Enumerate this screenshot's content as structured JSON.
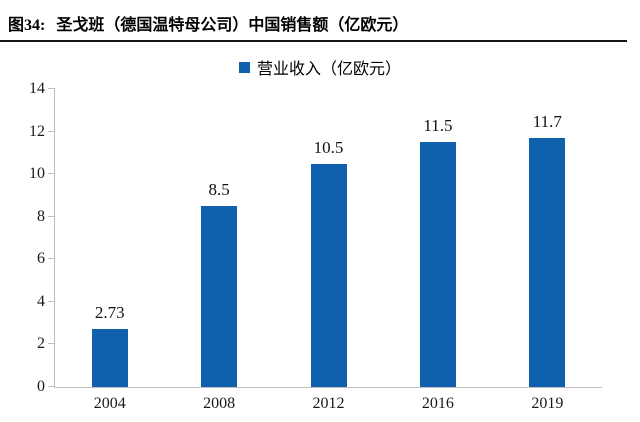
{
  "figure": {
    "number": "图34:",
    "title": "圣戈班（德国温特母公司）中国销售额（亿欧元）"
  },
  "legend": {
    "label": "营业收入（亿欧元）"
  },
  "colors": {
    "bar": "#0F61AE",
    "axis": "#BFBFBF",
    "rule": "#141414",
    "text": "#000000"
  },
  "chart_data": {
    "type": "bar",
    "title": "圣戈班（德国温特母公司）中国销售额（亿欧元）",
    "series_name": "营业收入（亿欧元）",
    "categories": [
      "2004",
      "2008",
      "2012",
      "2016",
      "2019"
    ],
    "values": [
      2.73,
      8.5,
      10.5,
      11.5,
      11.7
    ],
    "value_labels": [
      "2.73",
      "8.5",
      "10.5",
      "11.5",
      "11.7"
    ],
    "xlabel": "",
    "ylabel": "",
    "ylim": [
      0,
      14
    ],
    "yticks": [
      0,
      2,
      4,
      6,
      8,
      10,
      12,
      14
    ],
    "grid": false,
    "legend_position": "top-center"
  }
}
